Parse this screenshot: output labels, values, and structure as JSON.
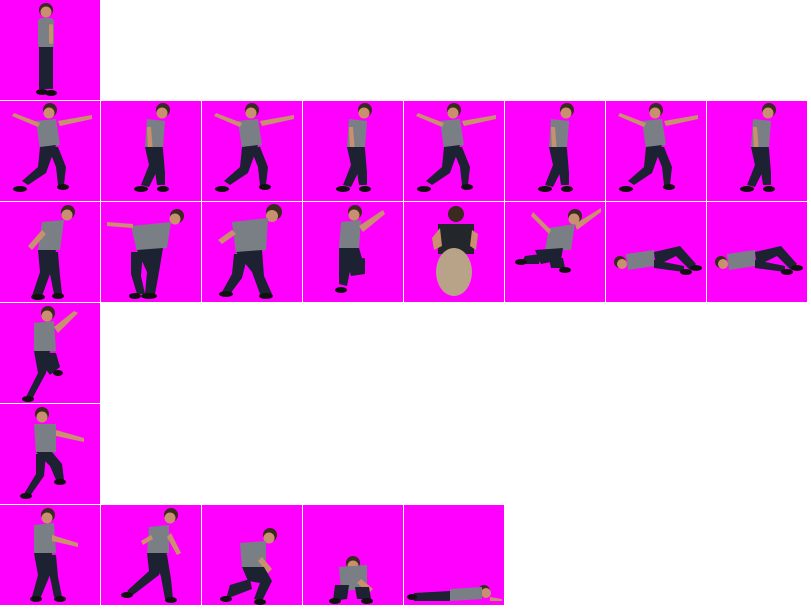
{
  "sprite_sheet": {
    "background_color": "#ff00ff",
    "canvas_color": "#ffffff",
    "frame_size": 100,
    "rows": [
      {
        "name": "idle",
        "frames": [
          "stand"
        ]
      },
      {
        "name": "run",
        "frames": [
          "run-a",
          "run-b",
          "run-a",
          "run-b",
          "run-a",
          "run-b",
          "run-a",
          "run-b"
        ]
      },
      {
        "name": "jump",
        "frames": [
          "lean",
          "crouch",
          "crouch-deep",
          "leap",
          "back-view",
          "airborne",
          "lying",
          "lying"
        ]
      },
      {
        "name": "attack-1",
        "frames": [
          "punch"
        ]
      },
      {
        "name": "attack-2",
        "frames": [
          "kick"
        ]
      },
      {
        "name": "die",
        "frames": [
          "reach",
          "step",
          "kneel",
          "crouch-low",
          "prone"
        ]
      }
    ]
  }
}
